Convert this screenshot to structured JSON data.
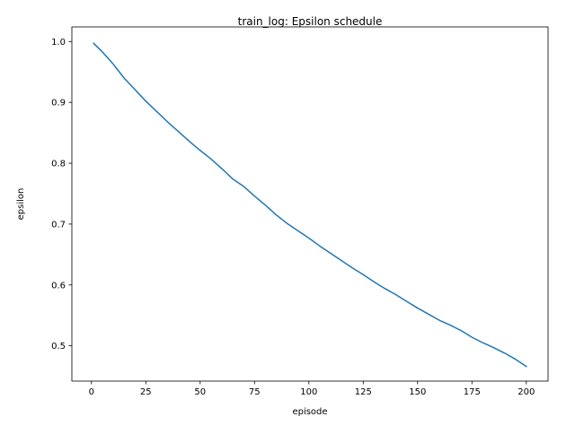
{
  "chart_data": {
    "type": "line",
    "title": "train_log: Epsilon schedule",
    "xlabel": "episode",
    "ylabel": "epsilon",
    "xlim": [
      -9,
      210
    ],
    "ylim": [
      0.442,
      1.024
    ],
    "xticks": [
      0,
      25,
      50,
      75,
      100,
      125,
      150,
      175,
      200
    ],
    "yticks": [
      0.5,
      0.6,
      0.7,
      0.8,
      0.9,
      1.0
    ],
    "grid": false,
    "legend": null,
    "series": [
      {
        "color": "#1f77b4",
        "x": [
          1,
          5,
          10,
          15,
          20,
          25,
          30,
          35,
          40,
          45,
          50,
          55,
          60,
          65,
          70,
          75,
          80,
          85,
          90,
          95,
          100,
          105,
          110,
          115,
          120,
          125,
          130,
          135,
          140,
          145,
          150,
          155,
          160,
          165,
          170,
          175,
          180,
          185,
          190,
          195,
          200
        ],
        "y": [
          0.997,
          0.983,
          0.963,
          0.94,
          0.921,
          0.902,
          0.885,
          0.868,
          0.852,
          0.836,
          0.821,
          0.807,
          0.791,
          0.774,
          0.762,
          0.746,
          0.731,
          0.715,
          0.701,
          0.689,
          0.677,
          0.664,
          0.652,
          0.64,
          0.628,
          0.617,
          0.605,
          0.594,
          0.584,
          0.573,
          0.562,
          0.552,
          0.542,
          0.534,
          0.525,
          0.514,
          0.505,
          0.497,
          0.488,
          0.478,
          0.466
        ]
      }
    ]
  }
}
